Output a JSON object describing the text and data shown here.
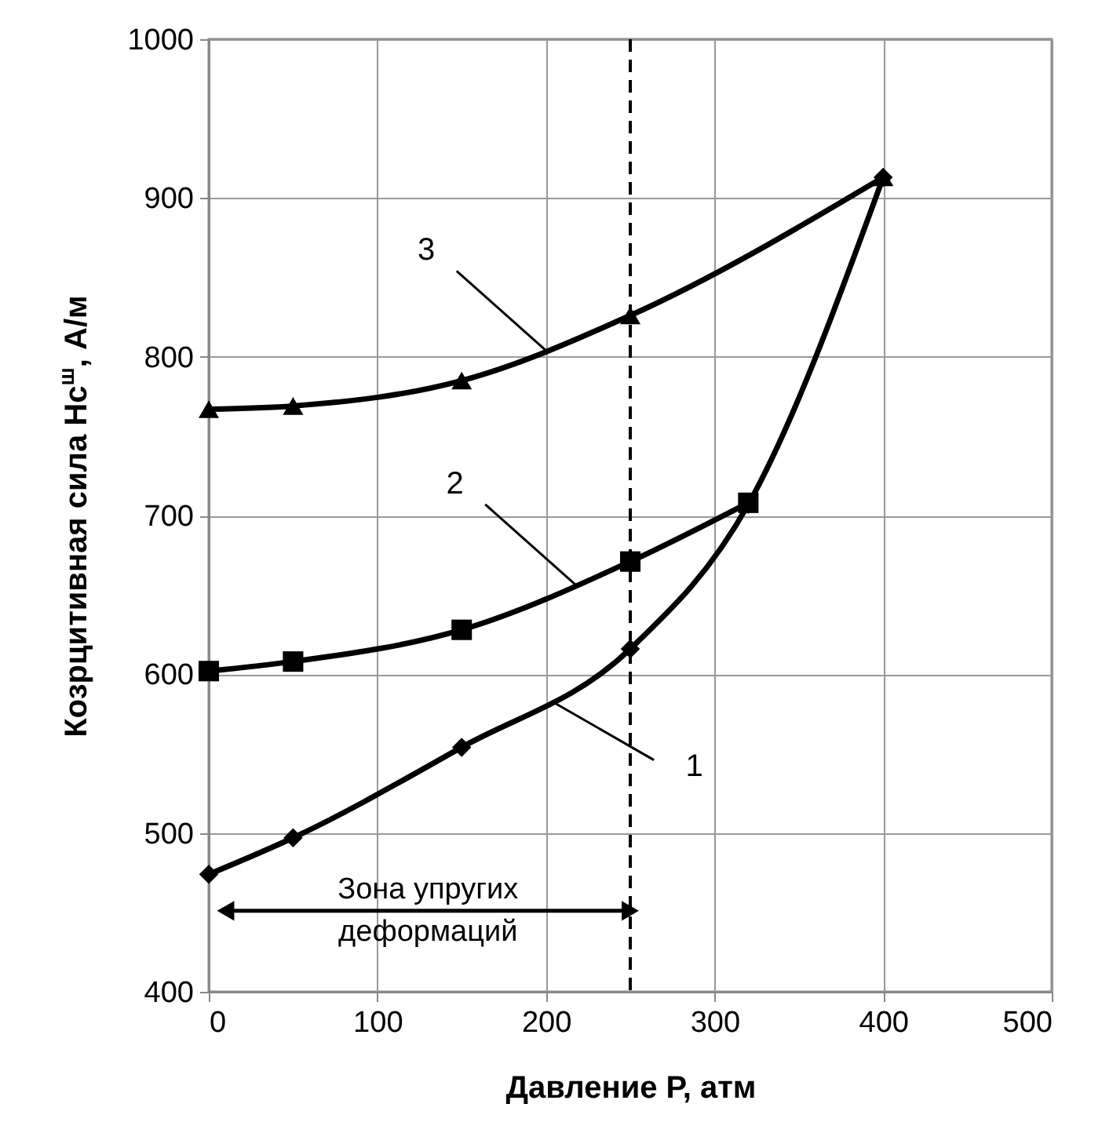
{
  "chart_data": {
    "type": "line",
    "xlabel": "Давление Р, атм",
    "ylabel": "Козрцитивная сила Hc$^{ш}$, А/м",
    "xlim": [
      0,
      500
    ],
    "xticks": [
      0,
      100,
      200,
      300,
      400,
      500
    ],
    "ylim": [
      400,
      1000
    ],
    "yticks": [
      400,
      500,
      600,
      700,
      800,
      900,
      {
        "value": 1000,
        "label": "1000"
      }
    ],
    "grid": true,
    "series": [
      {
        "color": "#000000",
        "marker": "diamond",
        "x": [
          0,
          50,
          150,
          250,
          320,
          400
        ],
        "values": [
          474,
          497,
          554,
          616,
          707,
          913
        ]
      },
      {
        "color": "#000000",
        "marker": "square",
        "x": [
          0,
          50,
          150,
          250,
          320
        ],
        "values": [
          602,
          608,
          628,
          671,
          708
        ]
      },
      {
        "color": "#000000",
        "marker": "triangle",
        "x": [
          0,
          50,
          150,
          250,
          400
        ],
        "values": [
          767,
          769,
          785,
          826,
          913
        ]
      }
    ],
    "ref_lines": [
      {
        "axis": "x",
        "value": 250,
        "line_style": "dashed",
        "color": "#000000"
      }
    ],
    "annotations": [
      "Зона упругих\nдеформаций",
      {
        "text": "1",
        "x": 205,
        "y": 582
      },
      {
        "text": "2",
        "x": 218,
        "y": 656
      },
      {
        "text": "3",
        "x": 201,
        "y": 803
      }
    ]
  }
}
